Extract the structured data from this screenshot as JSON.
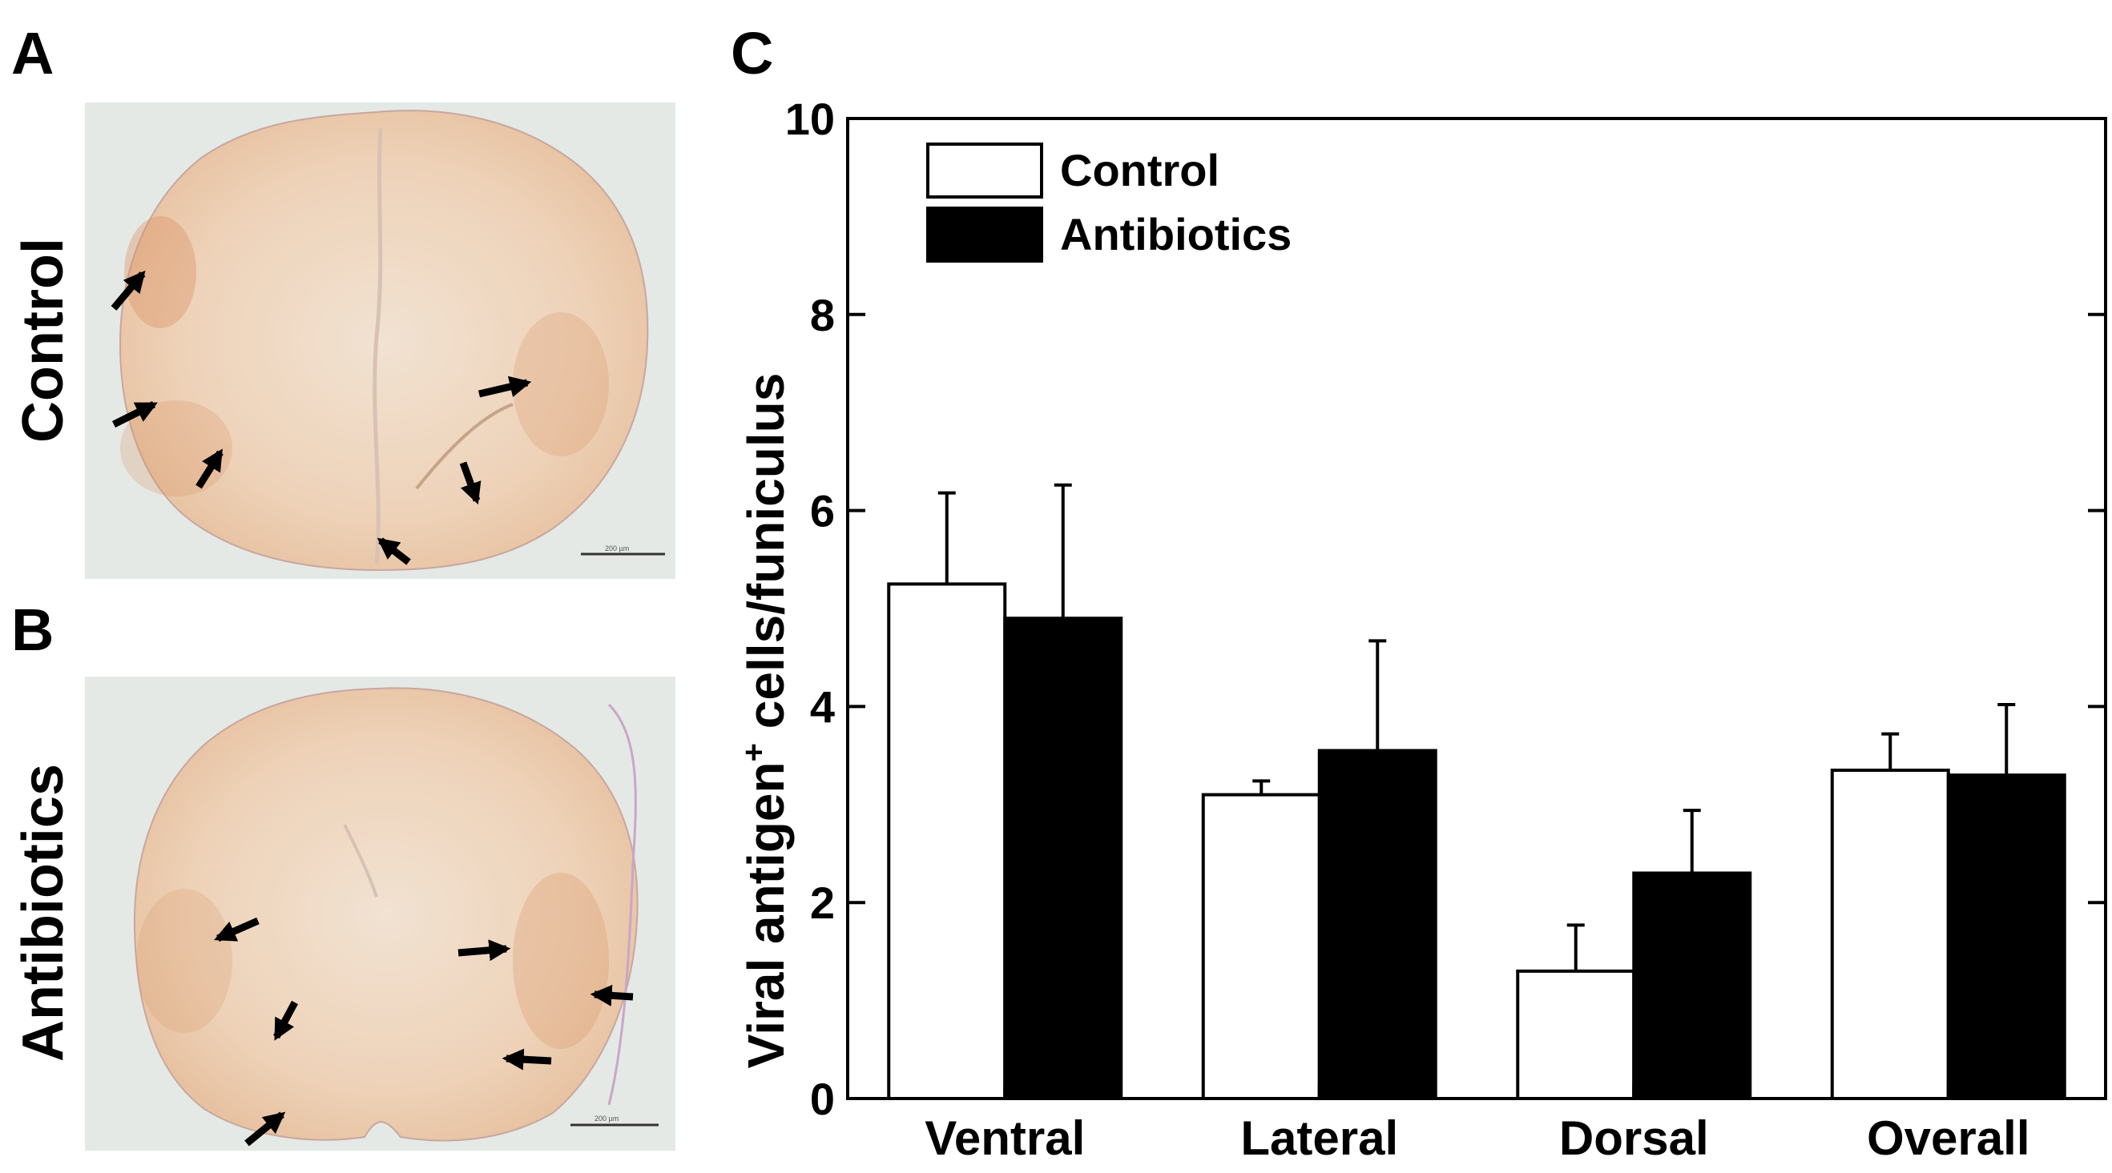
{
  "panels": {
    "a_letter": "A",
    "b_letter": "B",
    "c_letter": "C"
  },
  "micrographs": {
    "top_row_label": "Control",
    "bottom_row_label": "Antibiotics",
    "scale_bar_text": "200 µm",
    "tissue_color": "#ecd6c0",
    "stain_color": "#c8623a",
    "background_color": "#e4e9e5"
  },
  "chart_data": {
    "type": "bar",
    "categories": [
      "Ventral",
      "Lateral",
      "Dorsal",
      "Overall"
    ],
    "series": [
      {
        "name": "Control",
        "color": "#ffffff",
        "values": [
          5.25,
          3.1,
          1.3,
          3.35
        ],
        "errors": [
          0.93,
          0.14,
          0.47,
          0.37
        ]
      },
      {
        "name": "Antibiotics",
        "color": "#000000",
        "values": [
          4.9,
          3.55,
          2.3,
          3.3
        ],
        "errors": [
          1.36,
          1.12,
          0.64,
          0.72
        ]
      }
    ],
    "ylabel": "Viral antigen",
    "ylabel_superscript": "+",
    "ylabel_suffix": " cells/funiculus",
    "xlabel": "",
    "ylim": [
      0,
      10
    ],
    "yticks": [
      0,
      2,
      4,
      6,
      8,
      10
    ],
    "legend_position": "top-left",
    "grid": false
  }
}
